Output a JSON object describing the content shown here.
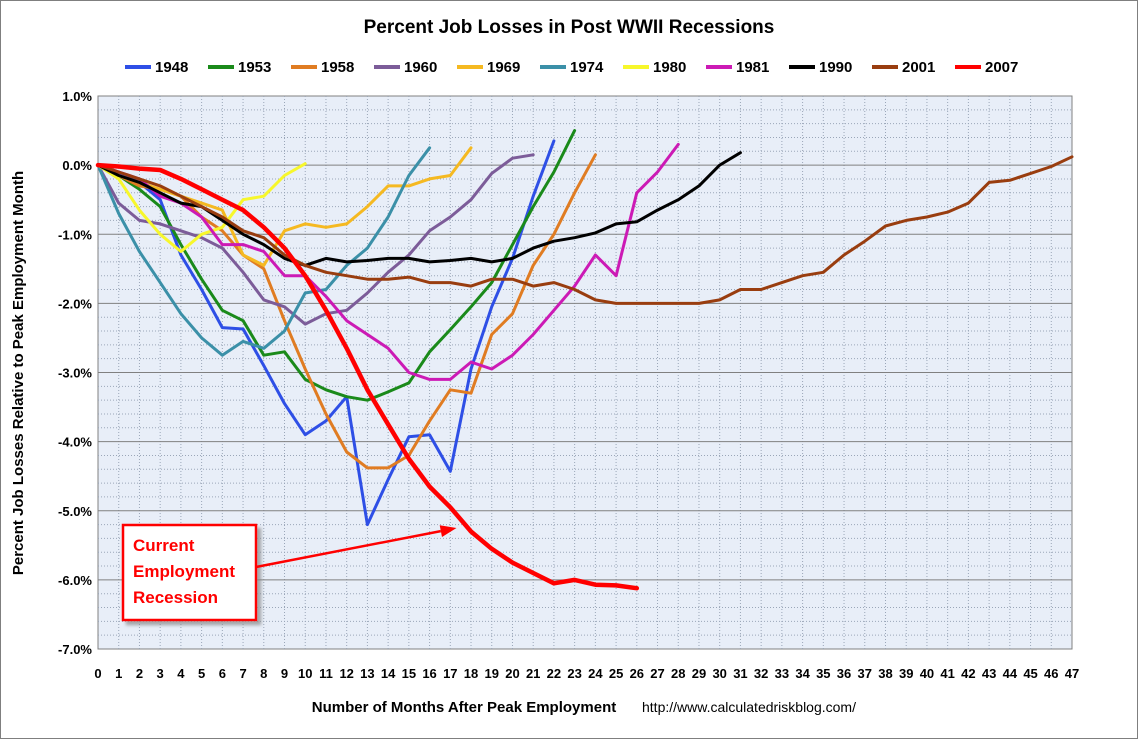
{
  "chart_data": {
    "type": "line",
    "title": "Percent Job Losses in Post WWII Recessions",
    "xlabel": "Number of Months After Peak Employment",
    "ylabel": "Percent Job Losses Relative to Peak Employment Month",
    "source_url": "http://www.calculatedriskblog.com/",
    "xlim": [
      0,
      47
    ],
    "ylim": [
      -7,
      1
    ],
    "x_ticks": [
      "0",
      "1",
      "2",
      "3",
      "4",
      "5",
      "6",
      "7",
      "8",
      "9",
      "10",
      "11",
      "12",
      "13",
      "14",
      "15",
      "16",
      "17",
      "18",
      "19",
      "20",
      "21",
      "22",
      "23",
      "24",
      "25",
      "26",
      "27",
      "28",
      "29",
      "30",
      "31",
      "32",
      "33",
      "34",
      "35",
      "36",
      "37",
      "38",
      "39",
      "40",
      "41",
      "42",
      "43",
      "44",
      "45",
      "46",
      "47"
    ],
    "y_ticks": [
      "1.0%",
      "0.0%",
      "-1.0%",
      "-2.0%",
      "-3.0%",
      "-4.0%",
      "-5.0%",
      "-6.0%",
      "-7.0%"
    ],
    "y_tick_values": [
      1,
      0,
      -1,
      -2,
      -3,
      -4,
      -5,
      -6,
      -7
    ],
    "grid": true,
    "legend_position": "top",
    "plot_background": "#e8eef8",
    "series": [
      {
        "name": "1948",
        "color": "#2e4fe6",
        "width": 3,
        "values": [
          0,
          -0.1,
          -0.25,
          -0.5,
          -1.3,
          -1.8,
          -2.35,
          -2.37,
          -2.9,
          -3.45,
          -3.9,
          -3.7,
          -3.35,
          -5.2,
          -4.55,
          -3.93,
          -3.9,
          -4.43,
          -2.95,
          -2.05,
          -1.35,
          -0.45,
          0.35
        ]
      },
      {
        "name": "1953",
        "color": "#1a8a1a",
        "width": 3,
        "values": [
          0,
          -0.15,
          -0.35,
          -0.6,
          -1.15,
          -1.65,
          -2.1,
          -2.25,
          -2.75,
          -2.7,
          -3.1,
          -3.25,
          -3.35,
          -3.4,
          -3.28,
          -3.15,
          -2.7,
          -2.38,
          -2.05,
          -1.7,
          -1.15,
          -0.6,
          -0.1,
          0.5
        ]
      },
      {
        "name": "1958",
        "color": "#e07c22",
        "width": 3,
        "values": [
          0,
          -0.15,
          -0.3,
          -0.35,
          -0.45,
          -0.75,
          -0.95,
          -1.3,
          -1.5,
          -2.25,
          -2.95,
          -3.6,
          -4.15,
          -4.38,
          -4.38,
          -4.2,
          -3.7,
          -3.25,
          -3.3,
          -2.45,
          -2.15,
          -1.45,
          -1.0,
          -0.4,
          0.15
        ]
      },
      {
        "name": "1960",
        "color": "#7c5c99",
        "width": 3,
        "values": [
          0,
          -0.55,
          -0.8,
          -0.85,
          -0.95,
          -1.05,
          -1.2,
          -1.55,
          -1.95,
          -2.05,
          -2.3,
          -2.15,
          -2.1,
          -1.85,
          -1.55,
          -1.3,
          -0.95,
          -0.75,
          -0.5,
          -0.12,
          0.1,
          0.15
        ]
      },
      {
        "name": "1969",
        "color": "#f5b921",
        "width": 3,
        "values": [
          0,
          -0.15,
          -0.25,
          -0.35,
          -0.45,
          -0.55,
          -0.65,
          -1.3,
          -1.45,
          -0.95,
          -0.85,
          -0.9,
          -0.85,
          -0.6,
          -0.3,
          -0.3,
          -0.2,
          -0.15,
          0.25
        ]
      },
      {
        "name": "1974",
        "color": "#3b90a8",
        "width": 3,
        "values": [
          0,
          -0.7,
          -1.25,
          -1.7,
          -2.15,
          -2.5,
          -2.75,
          -2.55,
          -2.65,
          -2.4,
          -1.85,
          -1.8,
          -1.45,
          -1.2,
          -0.75,
          -0.15,
          0.25
        ]
      },
      {
        "name": "1980",
        "color": "#f7f72b",
        "width": 3,
        "values": [
          0,
          -0.2,
          -0.65,
          -1.0,
          -1.25,
          -1.0,
          -0.9,
          -0.5,
          -0.45,
          -0.15,
          0.02
        ]
      },
      {
        "name": "1981",
        "color": "#cc1ab5",
        "width": 3,
        "values": [
          0,
          -0.1,
          -0.2,
          -0.45,
          -0.55,
          -0.75,
          -1.15,
          -1.15,
          -1.25,
          -1.6,
          -1.6,
          -1.9,
          -2.25,
          -2.45,
          -2.65,
          -3.0,
          -3.1,
          -3.1,
          -2.85,
          -2.95,
          -2.75,
          -2.45,
          -2.1,
          -1.75,
          -1.3,
          -1.6,
          -0.4,
          -0.1,
          0.3
        ]
      },
      {
        "name": "1990",
        "color": "#000000",
        "width": 3,
        "values": [
          0,
          -0.15,
          -0.25,
          -0.4,
          -0.55,
          -0.6,
          -0.8,
          -1.0,
          -1.15,
          -1.35,
          -1.45,
          -1.35,
          -1.4,
          -1.38,
          -1.35,
          -1.35,
          -1.4,
          -1.38,
          -1.35,
          -1.4,
          -1.35,
          -1.2,
          -1.1,
          -1.05,
          -0.98,
          -0.85,
          -0.82,
          -0.65,
          -0.5,
          -0.3,
          0.0,
          0.18
        ]
      },
      {
        "name": "2001",
        "color": "#993d0f",
        "width": 3,
        "values": [
          0,
          -0.1,
          -0.2,
          -0.3,
          -0.45,
          -0.6,
          -0.75,
          -0.95,
          -1.05,
          -1.3,
          -1.45,
          -1.55,
          -1.6,
          -1.65,
          -1.65,
          -1.62,
          -1.7,
          -1.7,
          -1.75,
          -1.65,
          -1.65,
          -1.75,
          -1.7,
          -1.8,
          -1.95,
          -2.0,
          -2.0,
          -2.0,
          -2.0,
          -2.0,
          -1.95,
          -1.8,
          -1.8,
          -1.7,
          -1.6,
          -1.55,
          -1.3,
          -1.1,
          -0.88,
          -0.8,
          -0.75,
          -0.68,
          -0.55,
          -0.25,
          -0.22,
          -0.12,
          -0.02,
          0.12
        ]
      },
      {
        "name": "2007",
        "color": "#ff0000",
        "width": 4.5,
        "values": [
          0,
          -0.02,
          -0.05,
          -0.07,
          -0.2,
          -0.35,
          -0.5,
          -0.65,
          -0.9,
          -1.2,
          -1.6,
          -2.1,
          -2.65,
          -3.25,
          -3.75,
          -4.25,
          -4.65,
          -4.95,
          -5.3,
          -5.55,
          -5.75,
          -5.9,
          -6.05,
          -6.0,
          -6.07,
          -6.08,
          -6.12
        ]
      }
    ],
    "annotations": [
      {
        "lines": [
          "Current",
          "Employment",
          "Recession"
        ],
        "color": "#ff0000",
        "arrow_to": {
          "x": 17.3,
          "y": -5.25
        }
      }
    ]
  }
}
